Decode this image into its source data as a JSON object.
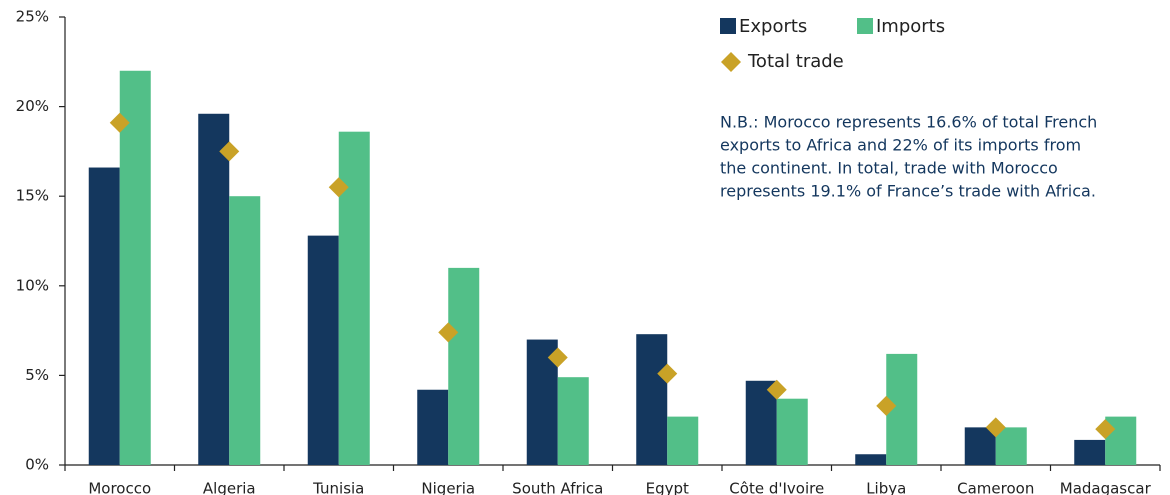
{
  "chart_data": {
    "type": "bar",
    "categories": [
      "Morocco",
      "Algeria",
      "Tunisia",
      "Nigeria",
      "South Africa",
      "Egypt",
      "Côte d'Ivoire",
      "Libya",
      "Cameroon",
      "Madagascar"
    ],
    "series": [
      {
        "name": "Exports",
        "color": "#14375e",
        "values": [
          16.6,
          19.6,
          12.8,
          4.2,
          7.0,
          7.3,
          4.7,
          0.6,
          2.1,
          1.4
        ]
      },
      {
        "name": "Imports",
        "color": "#52bf88",
        "values": [
          22,
          15,
          18.6,
          11,
          4.9,
          2.7,
          3.7,
          6.2,
          2.1,
          2.7
        ]
      },
      {
        "name": "Total trade",
        "color": "#c9a227",
        "marker": "diamond",
        "values": [
          19.1,
          17.5,
          15.5,
          7.4,
          6.0,
          5.1,
          4.2,
          3.3,
          2.1,
          2.0
        ]
      }
    ],
    "annotation": [
      "N.B.: Morocco represents 16.6% of total French",
      "exports to Africa and 22% of its imports from",
      "the continent. In total, trade with Morocco",
      "represents 19.1% of France’s trade with Africa."
    ],
    "ylim": [
      0,
      25
    ],
    "yticks": [
      {
        "value": 0,
        "label": "0%"
      },
      {
        "value": 5,
        "label": "5%"
      },
      {
        "value": 10,
        "label": "10%"
      },
      {
        "value": 15,
        "label": "15%"
      },
      {
        "value": 20,
        "label": "20%"
      },
      {
        "value": 25,
        "label": "25%"
      }
    ],
    "grid": false
  }
}
